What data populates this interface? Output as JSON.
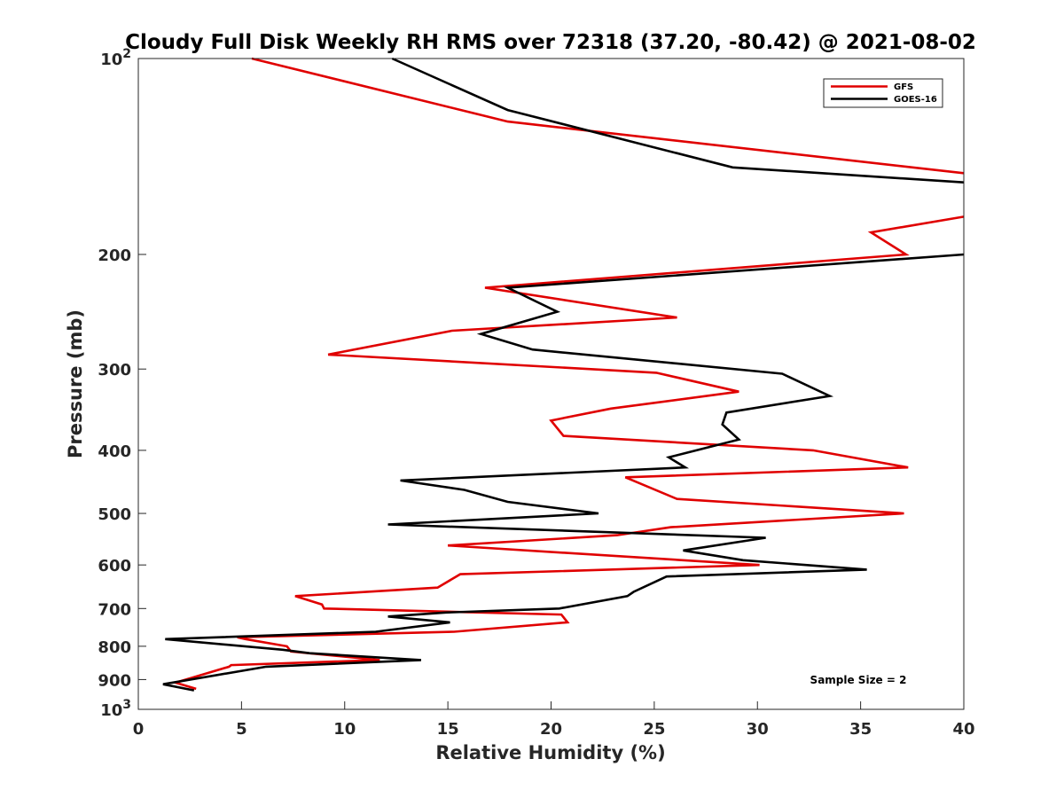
{
  "chart_data": {
    "type": "line",
    "title": "Cloudy Full Disk Weekly RH RMS over 72318 (37.20, -80.42) @ 2021-08-02",
    "xlabel": "Relative Humidity (%)",
    "ylabel": "Pressure (mb)",
    "xlim": [
      0,
      40
    ],
    "ylim": [
      100,
      1000
    ],
    "yscale": "log",
    "yreversed": true,
    "grid": false,
    "legend_position": "top-right",
    "x_ticks": [
      {
        "value": 0,
        "label": "0"
      },
      {
        "value": 5,
        "label": "5"
      },
      {
        "value": 10,
        "label": "10"
      },
      {
        "value": 15,
        "label": "15"
      },
      {
        "value": 20,
        "label": "20"
      },
      {
        "value": 25,
        "label": "25"
      },
      {
        "value": 30,
        "label": "30"
      },
      {
        "value": 35,
        "label": "35"
      },
      {
        "value": 40,
        "label": "40"
      }
    ],
    "y_ticks": [
      {
        "value": 100,
        "base": "10",
        "exp": "2"
      },
      {
        "value": 200,
        "label": "200"
      },
      {
        "value": 300,
        "label": "300"
      },
      {
        "value": 400,
        "label": "400"
      },
      {
        "value": 500,
        "label": "500"
      },
      {
        "value": 600,
        "label": "600"
      },
      {
        "value": 700,
        "label": "700"
      },
      {
        "value": 800,
        "label": "800"
      },
      {
        "value": 900,
        "label": "900"
      },
      {
        "value": 1000,
        "base": "10",
        "exp": "3"
      }
    ],
    "series": [
      {
        "name": "GFS",
        "color": "#e00000",
        "points": [
          [
            5.5,
            100
          ],
          [
            17.9,
            125
          ],
          [
            40,
            150
          ],
          null,
          [
            40,
            175
          ],
          [
            35.5,
            185
          ],
          [
            37.2,
            200
          ],
          [
            16.8,
            225
          ],
          [
            26.1,
            250
          ],
          [
            15.2,
            262
          ],
          [
            9.2,
            285
          ],
          [
            25.1,
            304
          ],
          [
            29.1,
            325
          ],
          [
            22.9,
            345
          ],
          [
            20,
            360
          ],
          [
            20.6,
            380
          ],
          [
            32.7,
            400
          ],
          [
            37.3,
            425
          ],
          [
            23.6,
            440
          ],
          [
            26.1,
            475
          ],
          [
            37.1,
            500
          ],
          [
            25.8,
            525
          ],
          [
            23.2,
            540
          ],
          [
            15,
            560
          ],
          [
            30.1,
            600
          ],
          [
            15.6,
            620
          ],
          [
            14.5,
            650
          ],
          [
            7.6,
            670
          ],
          [
            8.9,
            690
          ],
          [
            9,
            700
          ],
          [
            20.5,
            715
          ],
          [
            20.8,
            735
          ],
          [
            15.3,
            760
          ],
          [
            4.8,
            775
          ],
          [
            5.2,
            780
          ],
          [
            7.2,
            800
          ],
          [
            7.4,
            815
          ],
          [
            11.7,
            840
          ],
          [
            4.5,
            855
          ],
          [
            4.4,
            860
          ],
          [
            1.8,
            910
          ],
          [
            2.8,
            930
          ]
        ]
      },
      {
        "name": "GOES-16",
        "color": "#000000",
        "points": [
          [
            12.3,
            100
          ],
          [
            17.9,
            120
          ],
          [
            28.8,
            147
          ],
          [
            40,
            155
          ],
          null,
          [
            40,
            200
          ],
          [
            17.9,
            225
          ],
          [
            20.3,
            245
          ],
          [
            16.6,
            265
          ],
          [
            19.1,
            280
          ],
          [
            31.2,
            305
          ],
          [
            33.5,
            330
          ],
          [
            28.5,
            350
          ],
          [
            28.3,
            365
          ],
          [
            29.1,
            385
          ],
          [
            25.7,
            410
          ],
          [
            26.5,
            425
          ],
          [
            12.7,
            445
          ],
          [
            15.8,
            460
          ],
          [
            17.9,
            480
          ],
          [
            22.3,
            500
          ],
          [
            12.1,
            520
          ],
          [
            30.4,
            545
          ],
          [
            26.4,
            570
          ],
          [
            29.3,
            590
          ],
          [
            35.3,
            610
          ],
          [
            25.6,
            625
          ],
          [
            24,
            660
          ],
          [
            23.7,
            670
          ],
          [
            20.4,
            700
          ],
          [
            14.9,
            710
          ],
          [
            12.1,
            720
          ],
          [
            15.1,
            735
          ],
          [
            11.5,
            760
          ],
          [
            1.3,
            780
          ],
          [
            7,
            810
          ],
          [
            8.3,
            820
          ],
          [
            13.7,
            840
          ],
          [
            6.2,
            860
          ],
          [
            1.2,
            915
          ],
          [
            2.7,
            935
          ]
        ]
      }
    ],
    "annotation": "Sample Size = 2"
  }
}
